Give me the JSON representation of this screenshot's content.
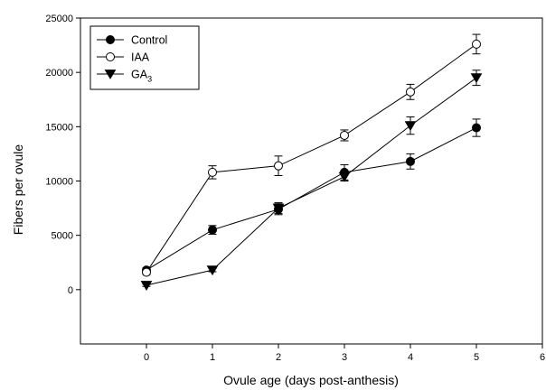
{
  "chart_data": {
    "type": "line",
    "xlabel": "Ovule age (days post-anthesis)",
    "ylabel": "Fibers per ovule",
    "xlim": [
      -1,
      6
    ],
    "ylim": [
      -5000,
      25000
    ],
    "xticks": [
      0,
      1,
      2,
      3,
      4,
      5,
      6
    ],
    "yticks": [
      0,
      5000,
      10000,
      15000,
      20000,
      25000
    ],
    "grid": false,
    "legend_position": "top-left",
    "series": [
      {
        "name": "Control",
        "name_main": "Control",
        "name_sub": "",
        "marker": "filled-circle",
        "x": [
          0,
          1,
          2,
          3,
          4,
          5
        ],
        "y": [
          1800,
          5500,
          7400,
          10800,
          11800,
          14900
        ],
        "err": [
          200,
          400,
          500,
          700,
          700,
          800
        ]
      },
      {
        "name": "IAA",
        "name_main": "IAA",
        "name_sub": "",
        "marker": "open-circle",
        "x": [
          0,
          1,
          2,
          3,
          4,
          5
        ],
        "y": [
          1600,
          10800,
          11400,
          14200,
          18200,
          22600
        ],
        "err": [
          200,
          600,
          900,
          500,
          700,
          900
        ]
      },
      {
        "name": "GA3",
        "name_main": "GA",
        "name_sub": "3",
        "marker": "filled-triangle-down",
        "x": [
          0,
          1,
          2,
          3,
          4,
          5
        ],
        "y": [
          400,
          1800,
          7500,
          10400,
          15100,
          19500
        ],
        "err": [
          100,
          150,
          500,
          400,
          800,
          700
        ]
      }
    ]
  }
}
